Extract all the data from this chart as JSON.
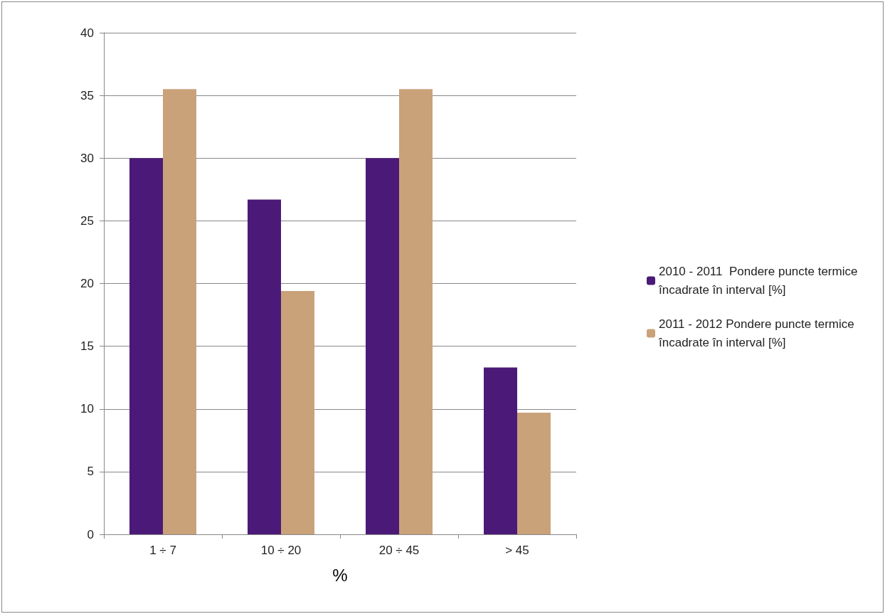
{
  "chart_data": {
    "type": "bar",
    "xlabel": "%",
    "categories": [
      "1 ÷ 7",
      "10 ÷ 20",
      "20 ÷ 45",
      "> 45"
    ],
    "series": [
      {
        "name": "2010 - 2011  Pondere puncte termice încadrate în interval [%]",
        "color": "#4b1a78",
        "values": [
          30,
          26.7,
          30,
          13.3
        ]
      },
      {
        "name": "2011 - 2012 Pondere puncte termice încadrate în interval [%]",
        "color": "#c9a27a",
        "values": [
          35.5,
          19.4,
          35.5,
          9.7
        ]
      }
    ],
    "ylim": [
      0,
      40
    ],
    "yticks": [
      0,
      5,
      10,
      15,
      20,
      25,
      30,
      35,
      40
    ],
    "grid": "y",
    "legend": "right"
  }
}
